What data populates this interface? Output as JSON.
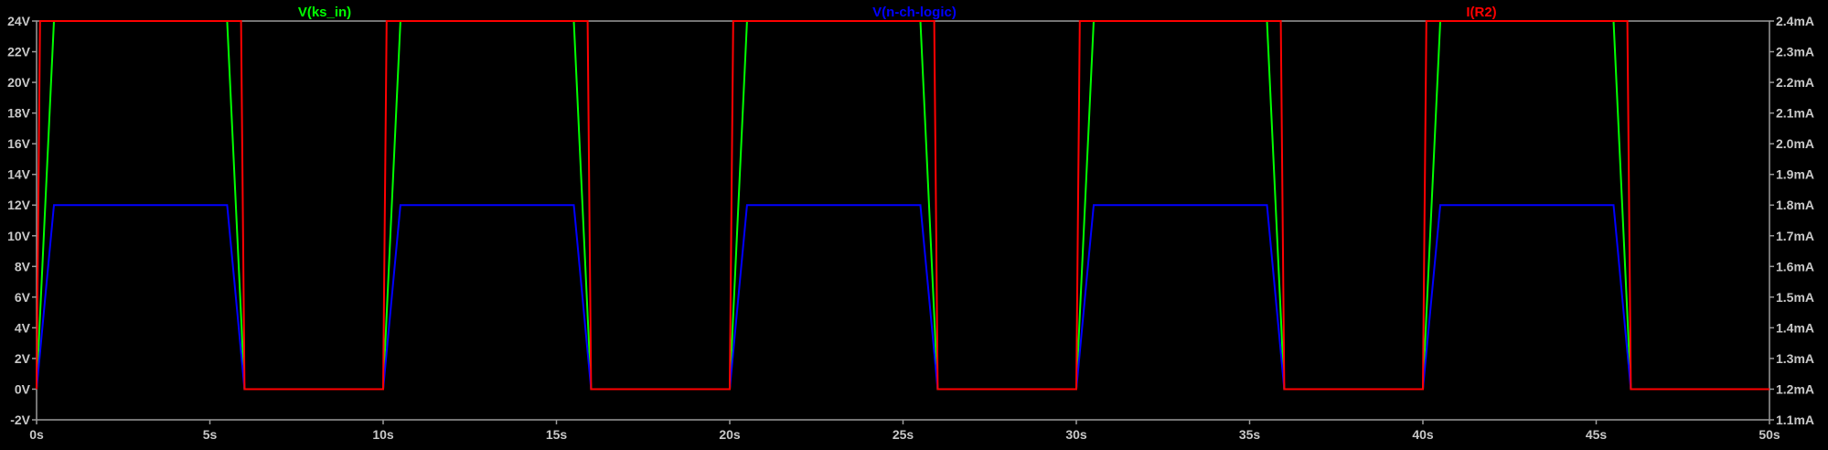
{
  "chart_data": {
    "type": "line",
    "xlabel": "",
    "ylabel": "",
    "xlim": [
      0,
      50
    ],
    "ylim": [
      -2,
      24
    ],
    "y2lim": [
      1.1,
      2.4
    ],
    "grid": false,
    "legend": "top",
    "x_ticks": [
      "0s",
      "5s",
      "10s",
      "15s",
      "20s",
      "25s",
      "30s",
      "35s",
      "40s",
      "45s",
      "50s"
    ],
    "x_tick_values": [
      0,
      5,
      10,
      15,
      20,
      25,
      30,
      35,
      40,
      45,
      50
    ],
    "y_ticks": [
      "-2V",
      "0V",
      "2V",
      "4V",
      "6V",
      "8V",
      "10V",
      "12V",
      "14V",
      "16V",
      "18V",
      "20V",
      "22V",
      "24V"
    ],
    "y_tick_values": [
      -2,
      0,
      2,
      4,
      6,
      8,
      10,
      12,
      14,
      16,
      18,
      20,
      22,
      24
    ],
    "y2_ticks": [
      "1.1mA",
      "1.2mA",
      "1.3mA",
      "1.4mA",
      "1.5mA",
      "1.6mA",
      "1.7mA",
      "1.8mA",
      "1.9mA",
      "2.0mA",
      "2.1mA",
      "2.2mA",
      "2.3mA",
      "2.4mA"
    ],
    "y2_tick_values": [
      1.1,
      1.2,
      1.3,
      1.4,
      1.5,
      1.6,
      1.7,
      1.8,
      1.9,
      2.0,
      2.1,
      2.2,
      2.3,
      2.4
    ],
    "series": [
      {
        "name": "V(ks_in)",
        "color": "#00ff00",
        "axis": "left",
        "x": [
          0,
          0.5,
          5.5,
          6.0,
          10.0,
          10.5,
          15.5,
          16.0,
          20.0,
          20.5,
          25.5,
          26.0,
          30.0,
          30.5,
          35.5,
          36.0,
          40.0,
          40.5,
          45.5,
          46.0
        ],
        "y": [
          0,
          24,
          24,
          0,
          0,
          24,
          24,
          0,
          0,
          24,
          24,
          0,
          0,
          24,
          24,
          0,
          0,
          24,
          24,
          0
        ]
      },
      {
        "name": "V(n-ch-logic)",
        "color": "#0000ff",
        "axis": "left",
        "x": [
          0,
          0.5,
          5.5,
          6.0,
          10.0,
          10.5,
          15.5,
          16.0,
          20.0,
          20.5,
          25.5,
          26.0,
          30.0,
          30.5,
          35.5,
          36.0,
          40.0,
          40.5,
          45.5,
          46.0
        ],
        "y": [
          0,
          12,
          12,
          0,
          0,
          12,
          12,
          0,
          0,
          12,
          12,
          0,
          0,
          12,
          12,
          0,
          0,
          12,
          12,
          0
        ]
      },
      {
        "name": "I(R2)",
        "color": "#ff0000",
        "axis": "right",
        "x": [
          0,
          0.1,
          5.9,
          6.0,
          10.0,
          10.1,
          15.9,
          16.0,
          20.0,
          20.1,
          25.9,
          26.0,
          30.0,
          30.1,
          35.9,
          36.0,
          40.0,
          40.1,
          45.9,
          46.0,
          50.0
        ],
        "y": [
          1.2,
          2.4,
          2.4,
          1.2,
          1.2,
          2.4,
          2.4,
          1.2,
          1.2,
          2.4,
          2.4,
          1.2,
          1.2,
          2.4,
          2.4,
          1.2,
          1.2,
          2.4,
          2.4,
          1.2,
          1.2
        ]
      }
    ]
  }
}
